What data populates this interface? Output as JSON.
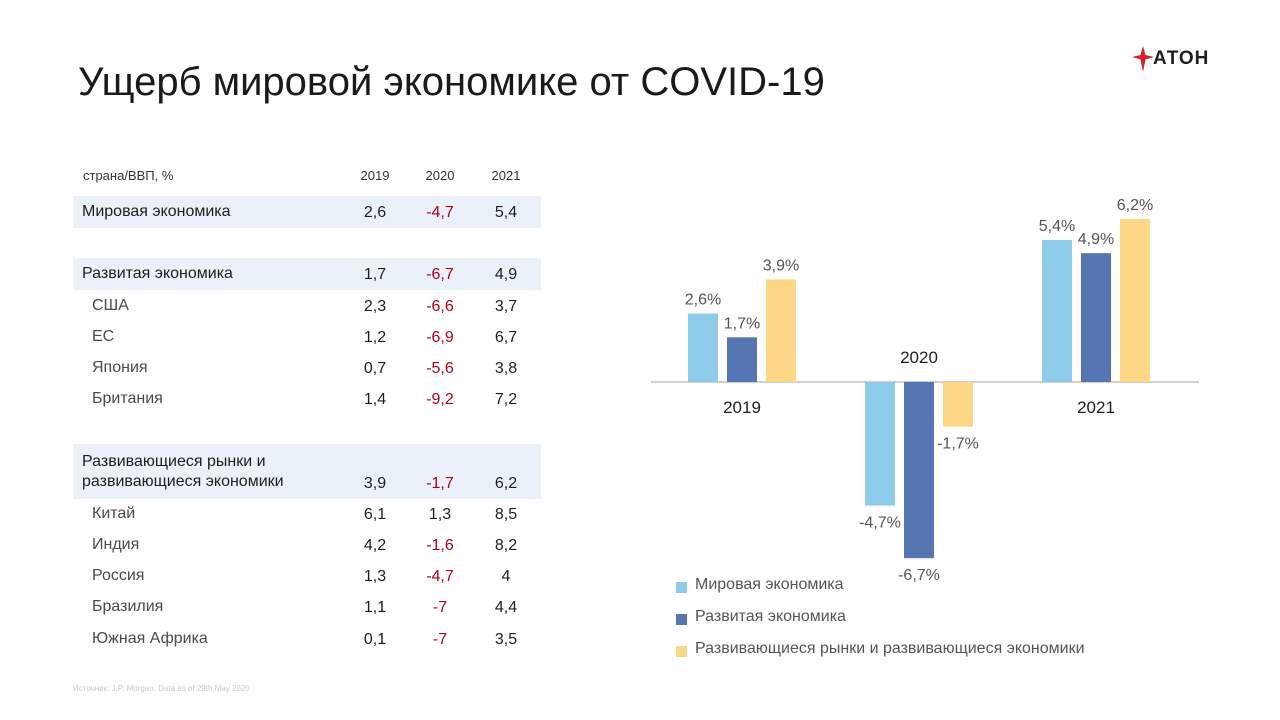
{
  "title": "Ущерб мировой экономике от COVID-19",
  "logo": {
    "text": "АТОН",
    "icon": "aton-star-icon"
  },
  "table": {
    "header": {
      "label": "страна/ВВП, %",
      "years": [
        "2019",
        "2020",
        "2021"
      ]
    },
    "rows": [
      {
        "label": "Мировая экономика",
        "values": [
          "2,6",
          "-4,7",
          "5,4"
        ],
        "kind": "group"
      },
      {
        "label": "Развитая экономика",
        "values": [
          "1,7",
          "-6,7",
          "4,9"
        ],
        "kind": "group"
      },
      {
        "label": "США",
        "values": [
          "2,3",
          "-6,6",
          "3,7"
        ],
        "kind": "sub"
      },
      {
        "label": "ЕС",
        "values": [
          "1,2",
          "-6,9",
          "6,7"
        ],
        "kind": "sub"
      },
      {
        "label": "Япония",
        "values": [
          "0,7",
          "-5,6",
          "3,8"
        ],
        "kind": "sub"
      },
      {
        "label": "Британия",
        "values": [
          "1,4",
          "-9,2",
          "7,2"
        ],
        "kind": "sub"
      },
      {
        "label": "Развивающиеся рынки и\nразвивающиеся экономики",
        "values": [
          "3,9",
          "-1,7",
          "6,2"
        ],
        "kind": "group2"
      },
      {
        "label": "Китай",
        "values": [
          "6,1",
          "1,3",
          "8,5"
        ],
        "kind": "sub"
      },
      {
        "label": "Индия",
        "values": [
          "4,2",
          "-1,6",
          "8,2"
        ],
        "kind": "sub"
      },
      {
        "label": "Россия",
        "values": [
          "1,3",
          "-4,7",
          "4"
        ],
        "kind": "sub"
      },
      {
        "label": "Бразилия",
        "values": [
          "1,1",
          "-7",
          "4,4"
        ],
        "kind": "sub"
      },
      {
        "label": "Южная Африка",
        "values": [
          "0,1",
          "-7",
          "3,5"
        ],
        "kind": "sub"
      }
    ]
  },
  "source": "Источник:  J.P. Morgan. Data as of 29th May 2020",
  "colors": {
    "negative": "#b2001a",
    "band": "#eaf1f8"
  },
  "chart_data": {
    "type": "bar",
    "categories": [
      "2019",
      "2020",
      "2021"
    ],
    "series": [
      {
        "name": "Мировая экономика",
        "color": "#8ecbea",
        "values": [
          2.6,
          -4.7,
          5.4
        ],
        "labels": [
          "2,6%",
          "-4,7%",
          "5,4%"
        ]
      },
      {
        "name": "Развитая экономика",
        "color": "#5676b3",
        "values": [
          1.7,
          -6.7,
          4.9
        ],
        "labels": [
          "1,7%",
          "-6,7%",
          "4,9%"
        ]
      },
      {
        "name": "Развивающиеся рынки и развивающиеся экономики",
        "color": "#fcd886",
        "values": [
          3.9,
          -1.7,
          6.2
        ],
        "labels": [
          "3,9%",
          "-1,7%",
          "6,2%"
        ]
      }
    ],
    "legend_position": "bottom",
    "grid": false
  }
}
